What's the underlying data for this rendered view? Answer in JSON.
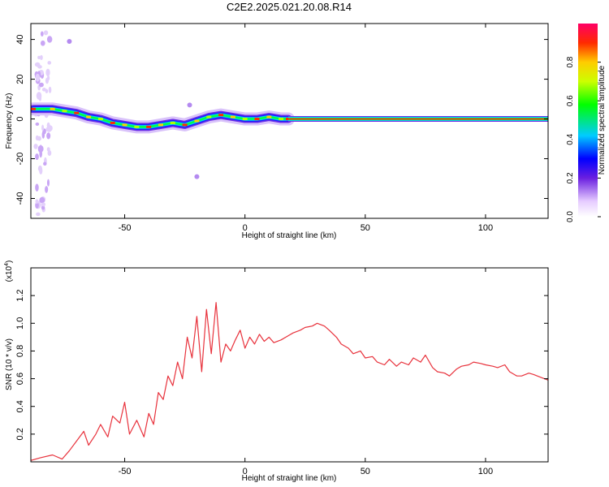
{
  "title": "C2E2.2025.021.20.08.R14",
  "chart_data": [
    {
      "type": "heatmap",
      "xlabel": "Height of straight line (km)",
      "ylabel": "Frequency (Hz)",
      "xlim": [
        -89,
        126
      ],
      "ylim": [
        -50,
        48
      ],
      "xticks": [
        -50,
        0,
        50,
        100
      ],
      "yticks": [
        -40,
        -20,
        0,
        20,
        40
      ],
      "colorbar": {
        "label": "Normalized spectral amplitude",
        "range": [
          0,
          1
        ],
        "ticks": [
          "0.0",
          "0.2",
          "0.4",
          "0.6",
          "0.8"
        ]
      },
      "ridge": {
        "x": [
          -88,
          -80,
          -75,
          -70,
          -65,
          -60,
          -55,
          -50,
          -45,
          -40,
          -35,
          -30,
          -25,
          -20,
          -15,
          -10,
          -5,
          0,
          5,
          10,
          15,
          18
        ],
        "y": [
          5,
          5,
          4,
          3,
          1,
          0,
          -2,
          -3,
          -4,
          -4,
          -3,
          -2,
          -3,
          -1,
          1,
          2,
          1,
          0,
          0,
          1,
          0,
          0
        ]
      },
      "steady_line": {
        "x": [
          18,
          126
        ],
        "y": 0
      }
    },
    {
      "type": "line",
      "xlabel": "Height of straight line (km)",
      "ylabel": "SNR (10 * v/v)",
      "y_multiplier": "(x10",
      "y_multiplier_exp": "4",
      "y_multiplier_close": ")",
      "xlim": [
        -89,
        126
      ],
      "ylim": [
        0,
        1.4
      ],
      "xticks": [
        -50,
        0,
        50,
        100
      ],
      "yticks": [
        "0.2",
        "0.4",
        "0.6",
        "0.8",
        "1.0",
        "1.2"
      ],
      "series": [
        {
          "color": "#e8323c",
          "x": [
            -89,
            -85,
            -80,
            -76,
            -73,
            -70,
            -67,
            -65,
            -62,
            -60,
            -57,
            -55,
            -52,
            -50,
            -48,
            -45,
            -42,
            -40,
            -38,
            -36,
            -34,
            -32,
            -30,
            -28,
            -26,
            -24,
            -22,
            -20,
            -18,
            -16,
            -14,
            -12,
            -10,
            -8,
            -6,
            -4,
            -2,
            0,
            2,
            4,
            6,
            8,
            10,
            12,
            15,
            18,
            20,
            23,
            25,
            28,
            30,
            33,
            35,
            38,
            40,
            43,
            45,
            48,
            50,
            53,
            55,
            58,
            60,
            63,
            65,
            68,
            70,
            73,
            75,
            78,
            80,
            83,
            85,
            88,
            90,
            93,
            95,
            98,
            100,
            103,
            105,
            108,
            110,
            113,
            115,
            118,
            120,
            123,
            126
          ],
          "y": [
            0.01,
            0.03,
            0.05,
            0.02,
            0.08,
            0.15,
            0.22,
            0.12,
            0.2,
            0.27,
            0.18,
            0.33,
            0.28,
            0.43,
            0.2,
            0.3,
            0.18,
            0.35,
            0.27,
            0.5,
            0.45,
            0.62,
            0.55,
            0.72,
            0.6,
            0.9,
            0.75,
            1.05,
            0.65,
            1.1,
            0.78,
            1.15,
            0.72,
            0.85,
            0.8,
            0.88,
            0.95,
            0.82,
            0.9,
            0.85,
            0.92,
            0.87,
            0.9,
            0.86,
            0.88,
            0.91,
            0.93,
            0.95,
            0.97,
            0.98,
            1.0,
            0.98,
            0.95,
            0.9,
            0.85,
            0.82,
            0.78,
            0.8,
            0.75,
            0.76,
            0.72,
            0.7,
            0.74,
            0.69,
            0.72,
            0.7,
            0.75,
            0.72,
            0.77,
            0.68,
            0.65,
            0.64,
            0.62,
            0.67,
            0.69,
            0.7,
            0.72,
            0.71,
            0.7,
            0.69,
            0.68,
            0.7,
            0.65,
            0.62,
            0.62,
            0.64,
            0.63,
            0.61,
            0.59
          ]
        }
      ]
    }
  ]
}
